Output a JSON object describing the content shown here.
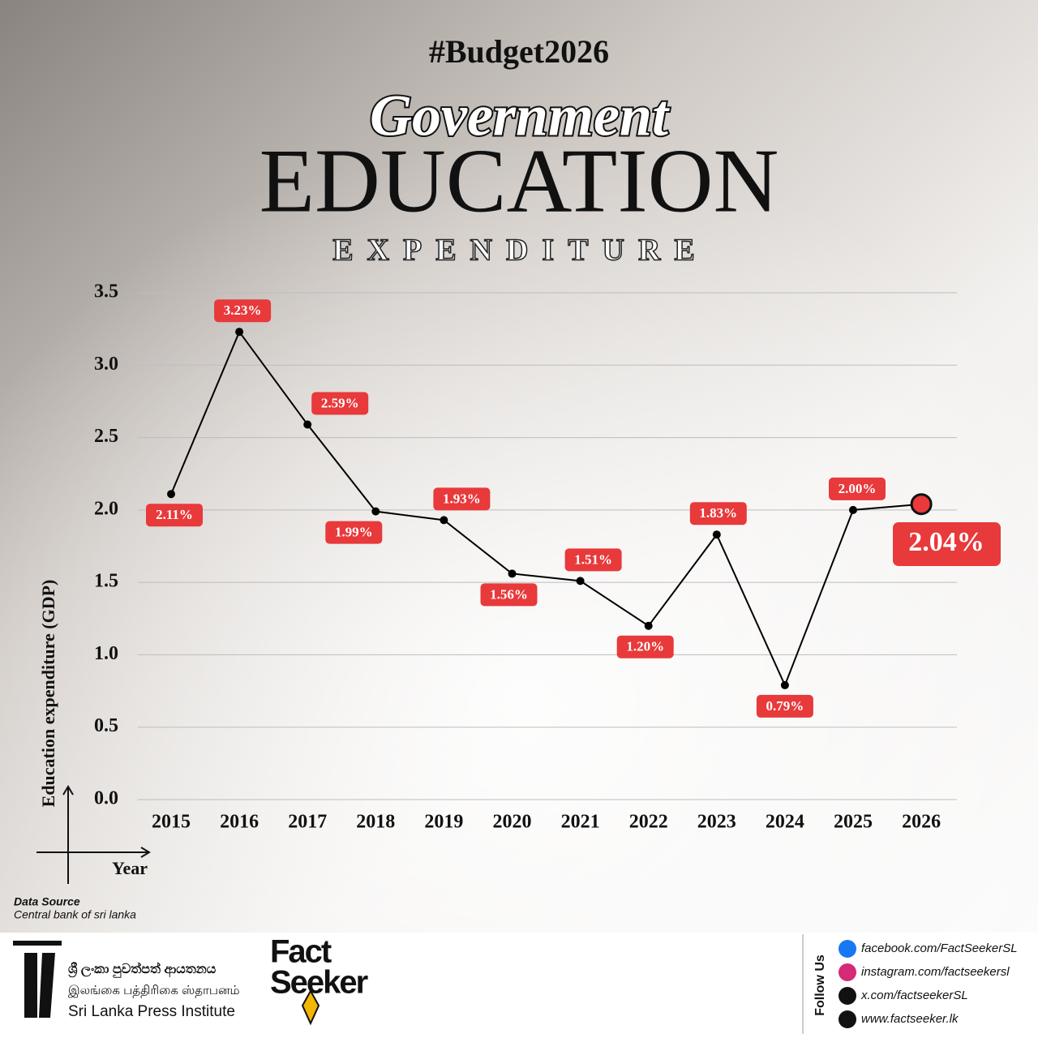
{
  "header": {
    "hashtag": "#Budget2026",
    "title_script": "Government",
    "title_main": "EDUCATION",
    "title_sub": "EXPENDITURE"
  },
  "chart_data": {
    "type": "line",
    "y_label": "Education expenditure (GDP)",
    "x_label": "Year",
    "categories": [
      "2015",
      "2016",
      "2017",
      "2018",
      "2019",
      "2020",
      "2021",
      "2022",
      "2023",
      "2024",
      "2025",
      "2026"
    ],
    "values": [
      2.11,
      3.23,
      2.59,
      1.99,
      1.93,
      1.56,
      1.51,
      1.2,
      1.83,
      0.79,
      2.0,
      2.04
    ],
    "value_labels": [
      "2.11%",
      "3.23%",
      "2.59%",
      "1.99%",
      "1.93%",
      "1.56%",
      "1.51%",
      "1.20%",
      "1.83%",
      "0.79%",
      "2.00%",
      "2.04%"
    ],
    "color": "#000000",
    "label_color": "#e8393b",
    "ylim": [
      0,
      3.5
    ],
    "yticks": [
      {
        "value": 0,
        "label": "0.0"
      },
      0.5,
      {
        "value": 1,
        "label": "1.0"
      },
      1.5,
      {
        "value": 2,
        "label": "2.0"
      },
      2.5,
      {
        "value": 3,
        "label": "3.0"
      },
      3.5
    ],
    "grid": true
  },
  "source": {
    "heading": "Data Source",
    "text": "Central bank of sri lanka"
  },
  "footer": {
    "institute": [
      "ශ්‍රී ලංකා පුවත්පත් ආයතනය",
      "இலங்கை பத்திரிகை ஸ்தாபனம்",
      "Sri Lanka Press Institute"
    ],
    "brand": [
      "Fact",
      "Seeker"
    ],
    "follow": "Follow Us",
    "links": [
      "facebook.com/FactSeekerSL",
      "instagram.com/factseekersl",
      "x.com/factseekerSL",
      "www.factseeker.lk"
    ]
  }
}
